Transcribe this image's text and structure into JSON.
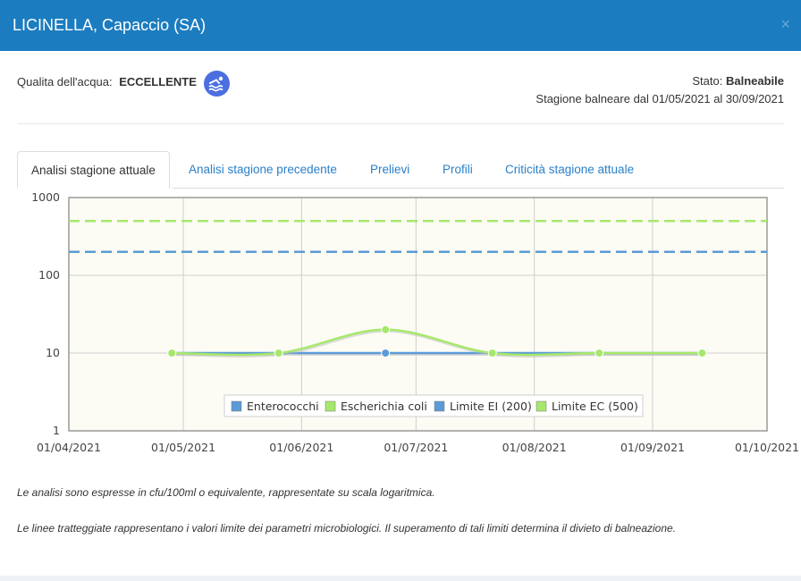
{
  "window": {
    "title": "LICINELLA, Capaccio (SA)",
    "close_glyph": "×"
  },
  "quality": {
    "label": "Qualita dell'acqua:",
    "value": "ECCELLENTE",
    "icon": "swimmer-icon"
  },
  "status": {
    "label": "Stato:",
    "value": "Balneabile",
    "season": "Stagione balneare dal 01/05/2021 al 30/09/2021"
  },
  "tabs": [
    {
      "label": "Analisi stagione attuale",
      "active": true
    },
    {
      "label": "Analisi stagione precedente",
      "active": false
    },
    {
      "label": "Prelievi",
      "active": false
    },
    {
      "label": "Profili",
      "active": false
    },
    {
      "label": "Criticità stagione attuale",
      "active": false
    }
  ],
  "chart_data": {
    "type": "line",
    "yscale": "log",
    "ylim": [
      1,
      1000
    ],
    "xlim": [
      "2021-04-01",
      "2021-10-01"
    ],
    "y_ticks": [
      "1000",
      "100",
      "10",
      "1"
    ],
    "x_ticks": [
      "01/04/2021",
      "01/05/2021",
      "01/06/2021",
      "01/07/2021",
      "01/08/2021",
      "01/09/2021",
      "01/10/2021"
    ],
    "legend_placement": "bottom-center",
    "grid": true,
    "series": [
      {
        "name": "Enterococchi",
        "color": "#5b9bd5",
        "style": "solid",
        "x": [
          "2021-04-28",
          "2021-05-26",
          "2021-06-23",
          "2021-07-21",
          "2021-08-18",
          "2021-09-14"
        ],
        "y": [
          10,
          10,
          10,
          10,
          10,
          10
        ]
      },
      {
        "name": "Escherichia coli",
        "color": "#a6e86b",
        "style": "solid",
        "x": [
          "2021-04-28",
          "2021-05-26",
          "2021-06-23",
          "2021-07-21",
          "2021-08-18",
          "2021-09-14"
        ],
        "y": [
          10,
          10,
          20,
          10,
          10,
          10
        ]
      },
      {
        "name": "Limite EI (200)",
        "color": "#5b9bd5",
        "style": "dashed",
        "value": 200
      },
      {
        "name": "Limite EC (500)",
        "color": "#a6e86b",
        "style": "dashed",
        "value": 500
      }
    ]
  },
  "notes": [
    "Le analisi sono espresse in cfu/100ml o equivalente, rappresentate su scala logaritmica.",
    "Le linee tratteggiate rappresentano i valori limite dei parametri microbiologici. Il superamento di tali limiti determina il divieto di balneazione."
  ]
}
